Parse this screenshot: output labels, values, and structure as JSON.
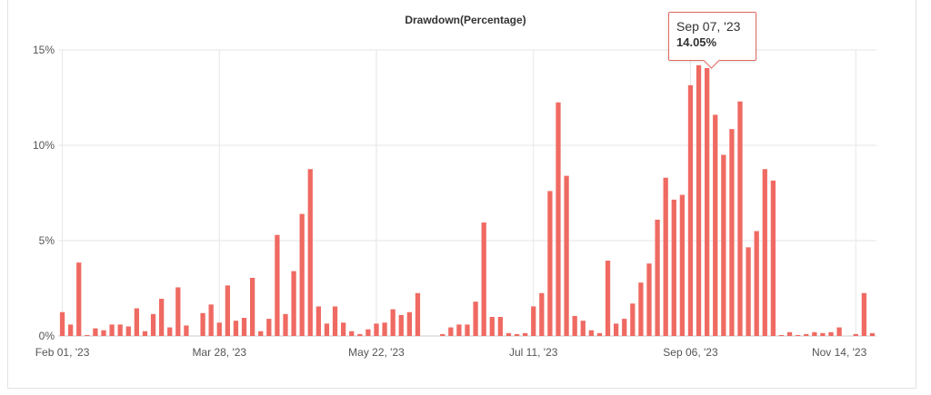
{
  "colors": {
    "bar": "#ef6a62",
    "grid": "#e6e6e6",
    "axis": "#cccccc",
    "tooltip_border": "#e06a62"
  },
  "chart_data": {
    "type": "bar",
    "title": "Drawdown(Percentage)",
    "xlabel": "",
    "ylabel": "",
    "ylim": [
      0,
      15
    ],
    "yticks": [
      "0%",
      "5%",
      "10%",
      "15%"
    ],
    "y_tick_values": [
      0,
      5,
      10,
      15
    ],
    "xticks": [
      {
        "label": "Feb 01, '23",
        "index": 0
      },
      {
        "label": "Mar 28, '23",
        "index": 19
      },
      {
        "label": "May 22, '23",
        "index": 38
      },
      {
        "label": "Jul 11, '23",
        "index": 57
      },
      {
        "label": "Sep 06, '23",
        "index": 76
      },
      {
        "label": "Nov 14, '23",
        "index": 96
      }
    ],
    "grid": true,
    "values": [
      1.25,
      0.6,
      3.85,
      0.05,
      0.4,
      0.3,
      0.6,
      0.6,
      0.5,
      1.45,
      0.25,
      1.15,
      1.95,
      0.45,
      2.55,
      0.55,
      0.0,
      1.2,
      1.65,
      0.7,
      2.65,
      0.8,
      0.95,
      3.05,
      0.25,
      0.9,
      5.3,
      1.15,
      3.4,
      6.4,
      8.75,
      1.55,
      0.65,
      1.55,
      0.7,
      0.25,
      0.1,
      0.35,
      0.65,
      0.7,
      1.4,
      1.1,
      1.25,
      2.25,
      0.0,
      0.0,
      0.1,
      0.45,
      0.6,
      0.6,
      1.8,
      5.95,
      1.0,
      1.0,
      0.15,
      0.1,
      0.15,
      1.55,
      2.25,
      7.6,
      12.25,
      8.4,
      1.05,
      0.8,
      0.3,
      0.15,
      3.95,
      0.65,
      0.9,
      1.7,
      2.8,
      3.8,
      6.1,
      8.3,
      7.15,
      7.4,
      13.15,
      14.2,
      14.05,
      11.6,
      9.5,
      10.85,
      12.3,
      4.65,
      5.5,
      8.75,
      8.15,
      0.05,
      0.2,
      0.05,
      0.1,
      0.2,
      0.15,
      0.2,
      0.45,
      0.0,
      0.1,
      2.25,
      0.15
    ],
    "tooltip": {
      "date": "Sep 07, '23",
      "value": "14.05%",
      "index": 78
    }
  }
}
